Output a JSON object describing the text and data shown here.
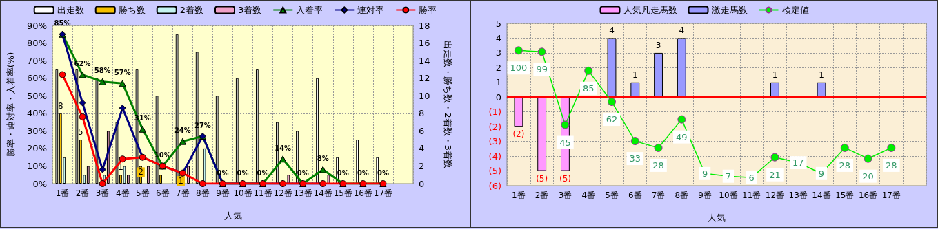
{
  "chart_data": [
    {
      "type": "bar",
      "categories": [
        "1番",
        "2番",
        "3番",
        "4番",
        "5番",
        "6番",
        "7番",
        "8番",
        "9番",
        "10番",
        "11番",
        "12番",
        "13番",
        "14番",
        "15番",
        "16番",
        "17番",
        null
      ],
      "xlabel": "人気",
      "ylabel": "勝率・連対率・入着率(%)",
      "y2label": "出走数・勝ち数・2着数・3着数",
      "ylim": [
        0,
        90
      ],
      "yticks": [
        {
          "value": 0,
          "label": "0%"
        },
        {
          "value": 10,
          "label": "10%"
        },
        {
          "value": 20,
          "label": "20%"
        },
        {
          "value": 30,
          "label": "30%"
        },
        {
          "value": 40,
          "label": "40%"
        },
        {
          "value": 50,
          "label": "50%"
        },
        {
          "value": 60,
          "label": "60%"
        },
        {
          "value": 70,
          "label": "70%"
        },
        {
          "value": 80,
          "label": "80%"
        },
        {
          "value": 90,
          "label": "90%"
        }
      ],
      "y2lim": [
        0,
        18
      ],
      "y2ticks": [
        0,
        2,
        4,
        6,
        8,
        10,
        12,
        14,
        16,
        18
      ],
      "grid": true,
      "legend": "top",
      "series": [
        {
          "name": "出走数",
          "color": "#ffffff",
          "axis": "y2",
          "values": [
            13,
            13,
            12,
            7,
            13,
            10,
            17,
            15,
            10,
            12,
            13,
            7,
            6,
            12,
            3,
            5,
            3,
            null
          ]
        },
        {
          "name": "勝ち数",
          "color": "#f5c000",
          "axis": "y2",
          "values": [
            8,
            5,
            null,
            1,
            2,
            1,
            1,
            null,
            null,
            null,
            null,
            null,
            null,
            null,
            null,
            null,
            null,
            null
          ],
          "value_labels": [
            "8",
            "5",
            null,
            "1",
            "2",
            null,
            "1",
            null,
            null,
            null,
            null,
            null,
            null,
            null,
            null,
            null,
            null,
            null
          ]
        },
        {
          "name": "2着数",
          "color": "#c4f4f0",
          "axis": "y2",
          "values": [
            3,
            1,
            1,
            2,
            null,
            null,
            null,
            4,
            null,
            null,
            null,
            null,
            null,
            null,
            null,
            null,
            null,
            null
          ]
        },
        {
          "name": "3着数",
          "color": "#f0a0c8",
          "axis": "y2",
          "values": [
            null,
            2,
            6,
            1,
            2,
            null,
            2,
            null,
            null,
            null,
            null,
            1,
            null,
            1,
            null,
            null,
            null,
            null
          ]
        },
        {
          "name": "入着率",
          "type": "line",
          "color": "#008000",
          "marker": "triangle",
          "values": [
            85,
            62,
            58,
            57,
            31,
            10,
            24,
            27,
            0,
            0,
            0,
            14,
            0,
            8,
            0,
            0,
            0,
            null
          ],
          "value_labels": [
            "85%",
            "62%",
            "58%",
            "57%",
            "31%",
            "10%",
            "24%",
            "27%",
            "0%",
            "0%",
            "0%",
            "14%",
            "0%",
            "8%",
            "0%",
            "0%",
            "0%",
            null
          ]
        },
        {
          "name": "連対率",
          "type": "line",
          "color": "#000080",
          "marker": "diamond",
          "values": [
            85,
            46,
            8,
            43,
            15,
            10,
            6,
            27,
            0,
            0,
            0,
            0,
            0,
            0,
            null,
            null,
            0,
            null
          ]
        },
        {
          "name": "勝率",
          "type": "line",
          "color": "#ff0000",
          "marker": "circle",
          "values": [
            62,
            38,
            0,
            14,
            15,
            10,
            6,
            0,
            0,
            0,
            0,
            0,
            0,
            0,
            0,
            0,
            0,
            null
          ]
        }
      ]
    },
    {
      "type": "bar",
      "stacked": true,
      "categories": [
        "1番",
        "2番",
        "3番",
        "4番",
        "5番",
        "6番",
        "7番",
        "8番",
        "9番",
        "10番",
        "11番",
        "12番",
        "13番",
        "14番",
        "15番",
        "16番",
        "17番",
        null
      ],
      "xlabel": "人気",
      "ylim": [
        -6,
        5
      ],
      "yticks": [
        {
          "value": -6,
          "label": "(6)"
        },
        {
          "value": -5,
          "label": "(5)"
        },
        {
          "value": -4,
          "label": "(4)"
        },
        {
          "value": -3,
          "label": "(3)"
        },
        {
          "value": -2,
          "label": "(2)"
        },
        {
          "value": -1,
          "label": "(1)"
        },
        0,
        1,
        2,
        3,
        4,
        5
      ],
      "y2lim": [
        0,
        120
      ],
      "grid": true,
      "legend": "top",
      "ref_lines": [
        {
          "axis": "y",
          "value": 0,
          "color": "#ff0000"
        }
      ],
      "series": [
        {
          "name": "人気凡走馬数",
          "color": "#ff99ff",
          "values": [
            -2,
            -5,
            -5,
            null,
            null,
            null,
            null,
            null,
            null,
            null,
            null,
            null,
            null,
            null,
            null,
            null,
            null,
            null
          ],
          "value_labels": [
            "(2)",
            "(5)",
            "(5)",
            null,
            null,
            null,
            null,
            null,
            null,
            null,
            null,
            null,
            null,
            null,
            null,
            null,
            null,
            null
          ]
        },
        {
          "name": "激走馬数",
          "color": "#9999ff",
          "values": [
            null,
            null,
            null,
            null,
            4,
            1,
            3,
            4,
            null,
            null,
            null,
            1,
            null,
            1,
            null,
            null,
            null,
            null
          ],
          "value_labels": [
            null,
            null,
            null,
            null,
            "4",
            "1",
            "3",
            "4",
            null,
            null,
            null,
            "1",
            null,
            "1",
            null,
            null,
            null,
            null
          ]
        },
        {
          "name": "検定値",
          "type": "line",
          "axis": "y2",
          "color": "#00ee00",
          "marker": "circle",
          "values": [
            100,
            99,
            45,
            85,
            62,
            33,
            28,
            49,
            9,
            7,
            6,
            21,
            17,
            9,
            28,
            20,
            28,
            null
          ],
          "value_labels": [
            "100",
            "99",
            "45",
            "85",
            "62",
            "33",
            "28",
            "49",
            "9",
            "7",
            "6",
            "21",
            "17",
            "9",
            "28",
            "20",
            "28",
            null
          ]
        }
      ]
    }
  ]
}
